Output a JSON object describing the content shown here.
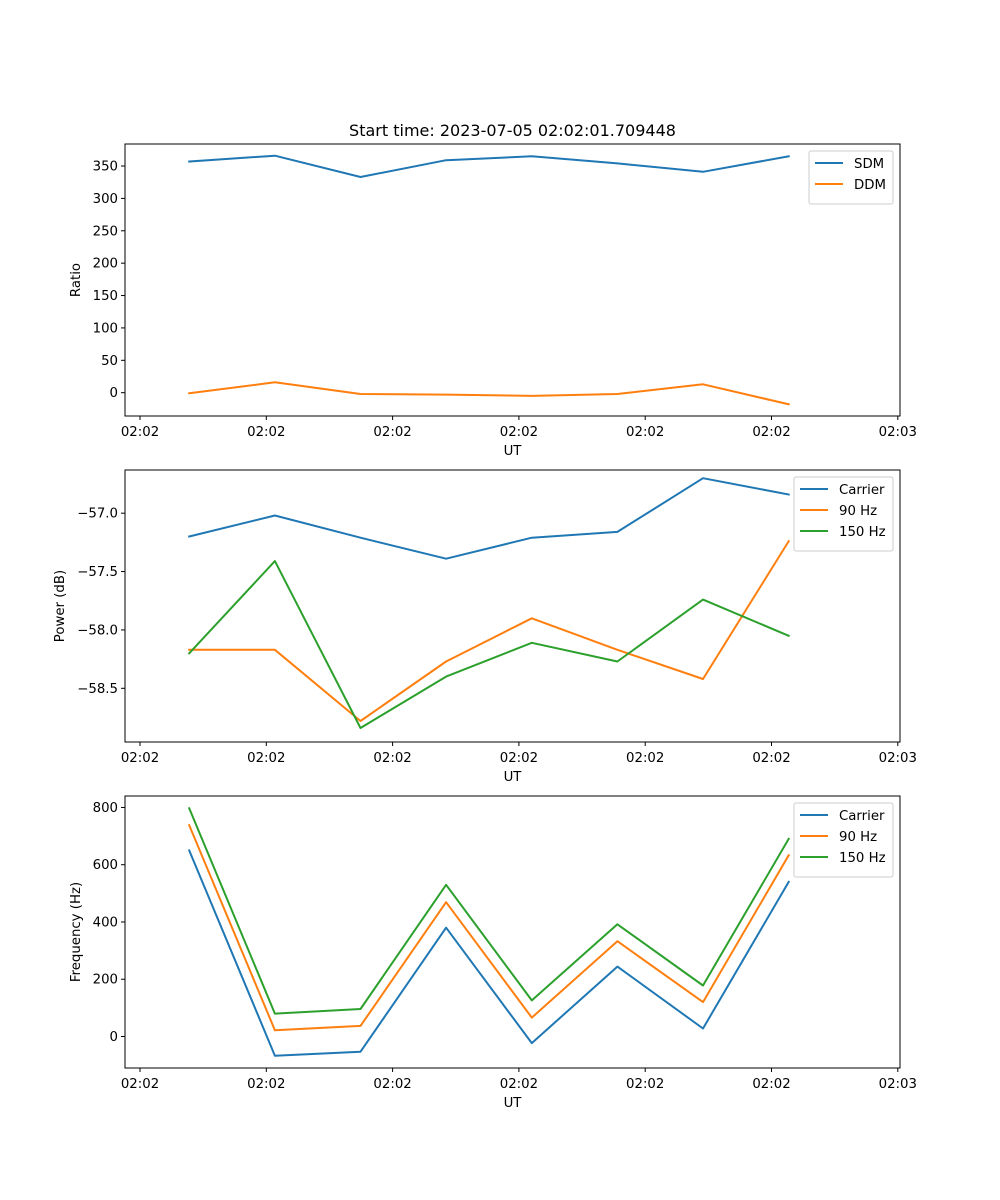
{
  "figure_title": "Start time: 2023-07-05 02:02:01.709448",
  "chart_data": [
    {
      "type": "line",
      "title": "Start time: 2023-07-05 02:02:01.709448",
      "xlabel": "UT",
      "ylabel": "Ratio",
      "x_tick_labels": [
        "02:02",
        "02:02",
        "02:02",
        "02:02",
        "02:02",
        "02:02",
        "02:03"
      ],
      "x": [
        1,
        2,
        3,
        4,
        5,
        6,
        7,
        8
      ],
      "xlim": [
        0.25,
        9.3
      ],
      "ylim": [
        -36,
        384
      ],
      "y_ticks": [
        0,
        50,
        100,
        150,
        200,
        250,
        300,
        350
      ],
      "y_tick_labels": [
        "0",
        "50",
        "100",
        "150",
        "200",
        "250",
        "300",
        "350"
      ],
      "legend_position": "top-right",
      "series": [
        {
          "name": "SDM",
          "color": "#1f77b4",
          "values": [
            357,
            366,
            333,
            359,
            365,
            354,
            341,
            365
          ]
        },
        {
          "name": "DDM",
          "color": "#ff7f0e",
          "values": [
            -1,
            16,
            -2,
            -3,
            -5,
            -2,
            13,
            -18
          ]
        }
      ]
    },
    {
      "type": "line",
      "xlabel": "UT",
      "ylabel": "Power (dB)",
      "x_tick_labels": [
        "02:02",
        "02:02",
        "02:02",
        "02:02",
        "02:02",
        "02:02",
        "02:03"
      ],
      "x": [
        1,
        2,
        3,
        4,
        5,
        6,
        7,
        8
      ],
      "xlim": [
        0.25,
        9.3
      ],
      "ylim": [
        -58.96,
        -56.63
      ],
      "y_ticks": [
        -57.0,
        -57.5,
        -58.0,
        -58.5
      ],
      "y_tick_labels": [
        "−57.0",
        "−57.5",
        "−58.0",
        "−58.5"
      ],
      "legend_position": "top-right",
      "series": [
        {
          "name": "Carrier",
          "color": "#1f77b4",
          "values": [
            -57.2,
            -57.02,
            -57.21,
            -57.39,
            -57.21,
            -57.16,
            -56.7,
            -56.84
          ]
        },
        {
          "name": "90 Hz",
          "color": "#ff7f0e",
          "values": [
            -58.17,
            -58.17,
            -58.78,
            -58.27,
            -57.9,
            -58.17,
            -58.42,
            -57.24
          ]
        },
        {
          "name": "150 Hz",
          "color": "#2ca02c",
          "values": [
            -58.2,
            -57.41,
            -58.84,
            -58.4,
            -58.11,
            -58.27,
            -57.74,
            -58.05
          ]
        }
      ]
    },
    {
      "type": "line",
      "xlabel": "UT",
      "ylabel": "Frequency (Hz)",
      "x_tick_labels": [
        "02:02",
        "02:02",
        "02:02",
        "02:02",
        "02:02",
        "02:02",
        "02:03"
      ],
      "x": [
        1,
        2,
        3,
        4,
        5,
        6,
        7,
        8
      ],
      "xlim": [
        0.25,
        9.3
      ],
      "ylim": [
        -110,
        840
      ],
      "y_ticks": [
        0,
        200,
        400,
        600,
        800
      ],
      "y_tick_labels": [
        "0",
        "200",
        "400",
        "600",
        "800"
      ],
      "legend_position": "top-right",
      "series": [
        {
          "name": "Carrier",
          "color": "#1f77b4",
          "values": [
            650,
            -67,
            -53,
            380,
            -23,
            244,
            28,
            540
          ]
        },
        {
          "name": "90 Hz",
          "color": "#ff7f0e",
          "values": [
            738,
            22,
            37,
            469,
            66,
            333,
            120,
            633
          ]
        },
        {
          "name": "150 Hz",
          "color": "#2ca02c",
          "values": [
            797,
            80,
            96,
            530,
            126,
            392,
            178,
            690
          ]
        }
      ]
    }
  ]
}
